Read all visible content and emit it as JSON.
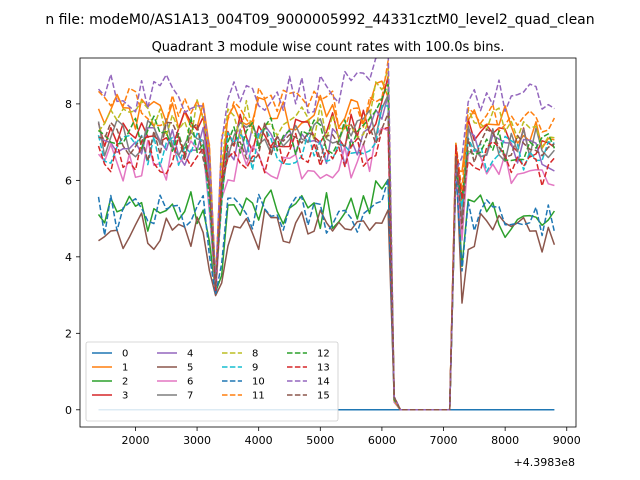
{
  "figure": {
    "suptitle": "n file: modeM0/AS1A13_004T09_9000005992_44331cztM0_level2_quad_clean",
    "title": "Quadrant 3 module wise count rates with 100.0s bins."
  },
  "chart_data": {
    "type": "line",
    "x_offset_label": "+4.3983e8",
    "xlim": [
      1100,
      9150
    ],
    "ylim": [
      -0.45,
      9.2
    ],
    "xticks": [
      2000,
      3000,
      4000,
      5000,
      6000,
      7000,
      8000,
      9000
    ],
    "yticks": [
      0,
      2,
      4,
      6,
      8
    ],
    "x_range": [
      1400,
      8800
    ],
    "bin": 100,
    "colors": [
      "#1f77b4",
      "#ff7f0e",
      "#2ca02c",
      "#d62728",
      "#9467bd",
      "#8c564b",
      "#e377c2",
      "#7f7f7f",
      "#bcbd22",
      "#17becf"
    ],
    "legend": {
      "position": "lower-left",
      "columns": 4
    },
    "segments": {
      "gap_start": 6250,
      "gap_end": 7100,
      "dip_x": 3300,
      "drop_edge": [
        6100,
        6200
      ],
      "recover_edge": [
        7100,
        7200
      ]
    },
    "series": [
      {
        "name": "0",
        "dashed": false,
        "flat": true,
        "value": 0.0
      },
      {
        "name": "1",
        "dashed": false,
        "base": 7.7,
        "dip": 3.0,
        "end": 7.0
      },
      {
        "name": "2",
        "dashed": false,
        "base": 5.2,
        "dip": 2.9,
        "end": 4.5
      },
      {
        "name": "3",
        "dashed": false,
        "base": 7.3,
        "dip": 3.0,
        "end": 6.8
      },
      {
        "name": "4",
        "dashed": false,
        "base": 6.9,
        "dip": 3.0,
        "end": 6.5
      },
      {
        "name": "5",
        "dashed": false,
        "base": 4.7,
        "dip": 2.8,
        "end": 4.3
      },
      {
        "name": "6",
        "dashed": false,
        "base": 6.5,
        "dip": 3.0,
        "end": 6.2
      },
      {
        "name": "7",
        "dashed": false,
        "base": 7.1,
        "dip": 3.0,
        "end": 6.7
      },
      {
        "name": "8",
        "dashed": true,
        "base": 7.6,
        "dip": 3.1,
        "end": 7.1
      },
      {
        "name": "9",
        "dashed": true,
        "base": 6.8,
        "dip": 3.0,
        "end": 6.3
      },
      {
        "name": "10",
        "dashed": true,
        "base": 5.1,
        "dip": 2.9,
        "end": 4.8
      },
      {
        "name": "11",
        "dashed": true,
        "base": 7.9,
        "dip": 3.1,
        "end": 7.3
      },
      {
        "name": "12",
        "dashed": true,
        "base": 7.2,
        "dip": 3.0,
        "end": 6.6
      },
      {
        "name": "13",
        "dashed": true,
        "base": 6.7,
        "dip": 3.0,
        "end": 6.0
      },
      {
        "name": "14",
        "dashed": true,
        "base": 8.3,
        "dip": 3.2,
        "end": 7.8
      },
      {
        "name": "15",
        "dashed": true,
        "base": 7.0,
        "dip": 3.0,
        "end": 6.5
      }
    ]
  }
}
